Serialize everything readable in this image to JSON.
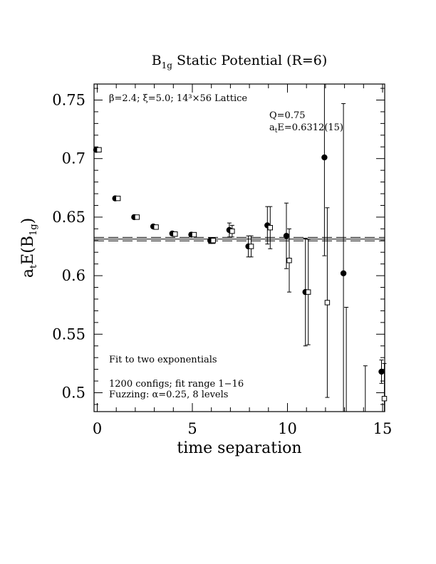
{
  "chart_data": {
    "type": "scatter",
    "title": {
      "main": "B",
      "sub": "1g",
      "rest": " Static Potential (R=6)"
    },
    "xlabel": "time separation",
    "ylabel": {
      "a": "a",
      "t": "t",
      "e": "E(B",
      "sub": "1g",
      "close": ")"
    },
    "xlim": [
      0,
      15
    ],
    "ylim": [
      0.485,
      0.765
    ],
    "x_ticks": [
      0,
      5,
      10,
      15
    ],
    "x_tick_labels": [
      "0",
      "5",
      "10",
      "15"
    ],
    "y_ticks": [
      0.5,
      0.55,
      0.6,
      0.65,
      0.7,
      0.75
    ],
    "y_tick_labels": [
      "0.5",
      "0.55",
      "0.6",
      "0.65",
      "0.7",
      "0.75"
    ],
    "grid": false,
    "annotations": {
      "lattice": "β=2.4; ξ=5.0; 14³×56 Lattice",
      "q": "Q=0.75",
      "energy_a": "a",
      "energy_t": "t",
      "energy_rest": "E=0.6312(15)",
      "fit_type": "Fit to two exponentials",
      "configs": "1200 configs; fit range 1−16",
      "fuzzing": "Fuzzing: α=0.25, 8 levels"
    },
    "fit": {
      "value": 0.6312,
      "error": 0.0015
    },
    "series": [
      {
        "marker": "filled-circle",
        "points": [
          {
            "x": 0,
            "y": 0.7075,
            "err": 0.0015
          },
          {
            "x": 1,
            "y": 0.666,
            "err": 0.0012
          },
          {
            "x": 2,
            "y": 0.65,
            "err": 0.0012
          },
          {
            "x": 3,
            "y": 0.642,
            "err": 0.0015
          },
          {
            "x": 4,
            "y": 0.636,
            "err": 0.0015
          },
          {
            "x": 5,
            "y": 0.635,
            "err": 0.0018
          },
          {
            "x": 6,
            "y": 0.63,
            "err": 0.0025
          },
          {
            "x": 7,
            "y": 0.639,
            "err": 0.006
          },
          {
            "x": 8,
            "y": 0.625,
            "err": 0.009
          },
          {
            "x": 9,
            "y": 0.643,
            "err": 0.016
          },
          {
            "x": 10,
            "y": 0.634,
            "err": 0.028
          },
          {
            "x": 11,
            "y": 0.586,
            "err": 0.046
          },
          {
            "x": 12,
            "y": 0.701,
            "err": 0.084
          },
          {
            "x": 13,
            "y": 0.602,
            "err": 0.145
          },
          {
            "x": 15,
            "y": 0.518,
            "err": 0.01
          }
        ]
      },
      {
        "marker": "open-square",
        "points": [
          {
            "x": 0,
            "y": 0.7075,
            "err": 0.0015
          },
          {
            "x": 1,
            "y": 0.666,
            "err": 0.0012
          },
          {
            "x": 2,
            "y": 0.65,
            "err": 0.0012
          },
          {
            "x": 3,
            "y": 0.6415,
            "err": 0.0015
          },
          {
            "x": 4,
            "y": 0.6355,
            "err": 0.0015
          },
          {
            "x": 5,
            "y": 0.635,
            "err": 0.0018
          },
          {
            "x": 6,
            "y": 0.63,
            "err": 0.0025
          },
          {
            "x": 7,
            "y": 0.638,
            "err": 0.005
          },
          {
            "x": 8,
            "y": 0.625,
            "err": 0.009
          },
          {
            "x": 9,
            "y": 0.641,
            "err": 0.018
          },
          {
            "x": 10,
            "y": 0.613,
            "err": 0.027
          },
          {
            "x": 11,
            "y": 0.586,
            "err": 0.045
          },
          {
            "x": 12,
            "y": 0.577,
            "err": 0.081
          },
          {
            "x": 13,
            "y": 0.48,
            "err": 0.093
          },
          {
            "x": 14,
            "y": 0.46,
            "err": 0.063
          },
          {
            "x": 15,
            "y": 0.495,
            "err": 0.03
          }
        ]
      }
    ]
  }
}
